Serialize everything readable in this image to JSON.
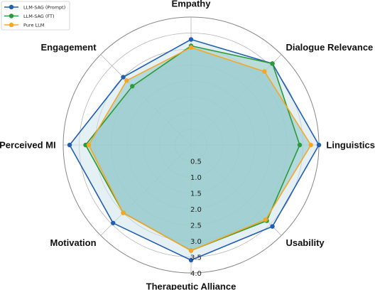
{
  "chart_data": {
    "type": "radar",
    "axes": [
      "Empathy",
      "Dialogue Relevance",
      "Linguistics",
      "Usability",
      "Therapeutic Alliance",
      "Motivation",
      "Perceived MI",
      "Engagement"
    ],
    "rlim": [
      0,
      4.0
    ],
    "rticks": [
      "0.5",
      "1.0",
      "1.5",
      "2.0",
      "2.5",
      "3.0",
      "3.5",
      "4.0"
    ],
    "grid": true,
    "legend_position": "top-left",
    "series": [
      {
        "name": "LLM-SAG (Prompt)",
        "color": "#1f5fb4",
        "fill": "#cfe3ec",
        "values": [
          3.3,
          3.6,
          4.0,
          3.6,
          3.6,
          3.45,
          3.8,
          3.0
        ]
      },
      {
        "name": "LLM-SAG (FT)",
        "color": "#2a9a3a",
        "fill": "#9fd0c8",
        "values": [
          3.1,
          3.6,
          3.4,
          3.35,
          3.3,
          3.0,
          3.3,
          2.6
        ]
      },
      {
        "name": "Pure LLM",
        "color": "#f5a623",
        "fill": "#93c9cf",
        "values": [
          3.05,
          3.25,
          3.75,
          3.3,
          3.3,
          3.0,
          3.2,
          2.85
        ]
      }
    ]
  }
}
